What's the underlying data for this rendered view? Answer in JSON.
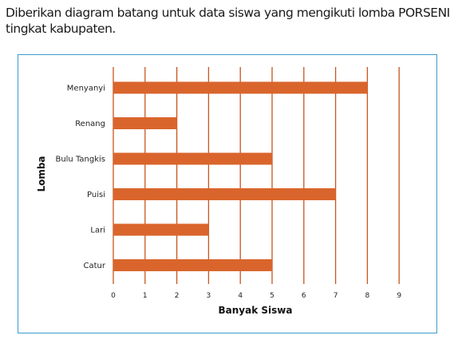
{
  "intro_text": "Diberikan diagram batang untuk data siswa yang mengikuti lomba PORSENI tingkat kabupaten.",
  "colors": {
    "bar": "#d9652c",
    "grid": "#c9541d",
    "frame": "#3d9bcb"
  },
  "chart_data": {
    "type": "bar",
    "orientation": "horizontal",
    "categories": [
      "Menyanyi",
      "Renang",
      "Bulu Tangkis",
      "Puisi",
      "Lari",
      "Catur"
    ],
    "values": [
      8,
      2,
      5,
      7,
      3,
      5
    ],
    "xlabel": "Banyak Siswa",
    "ylabel": "Lomba",
    "xlim": [
      0,
      9
    ],
    "xticks": [
      "0",
      "1",
      "2",
      "3",
      "4",
      "5",
      "6",
      "7",
      "8",
      "9"
    ],
    "grid": "vertical"
  }
}
